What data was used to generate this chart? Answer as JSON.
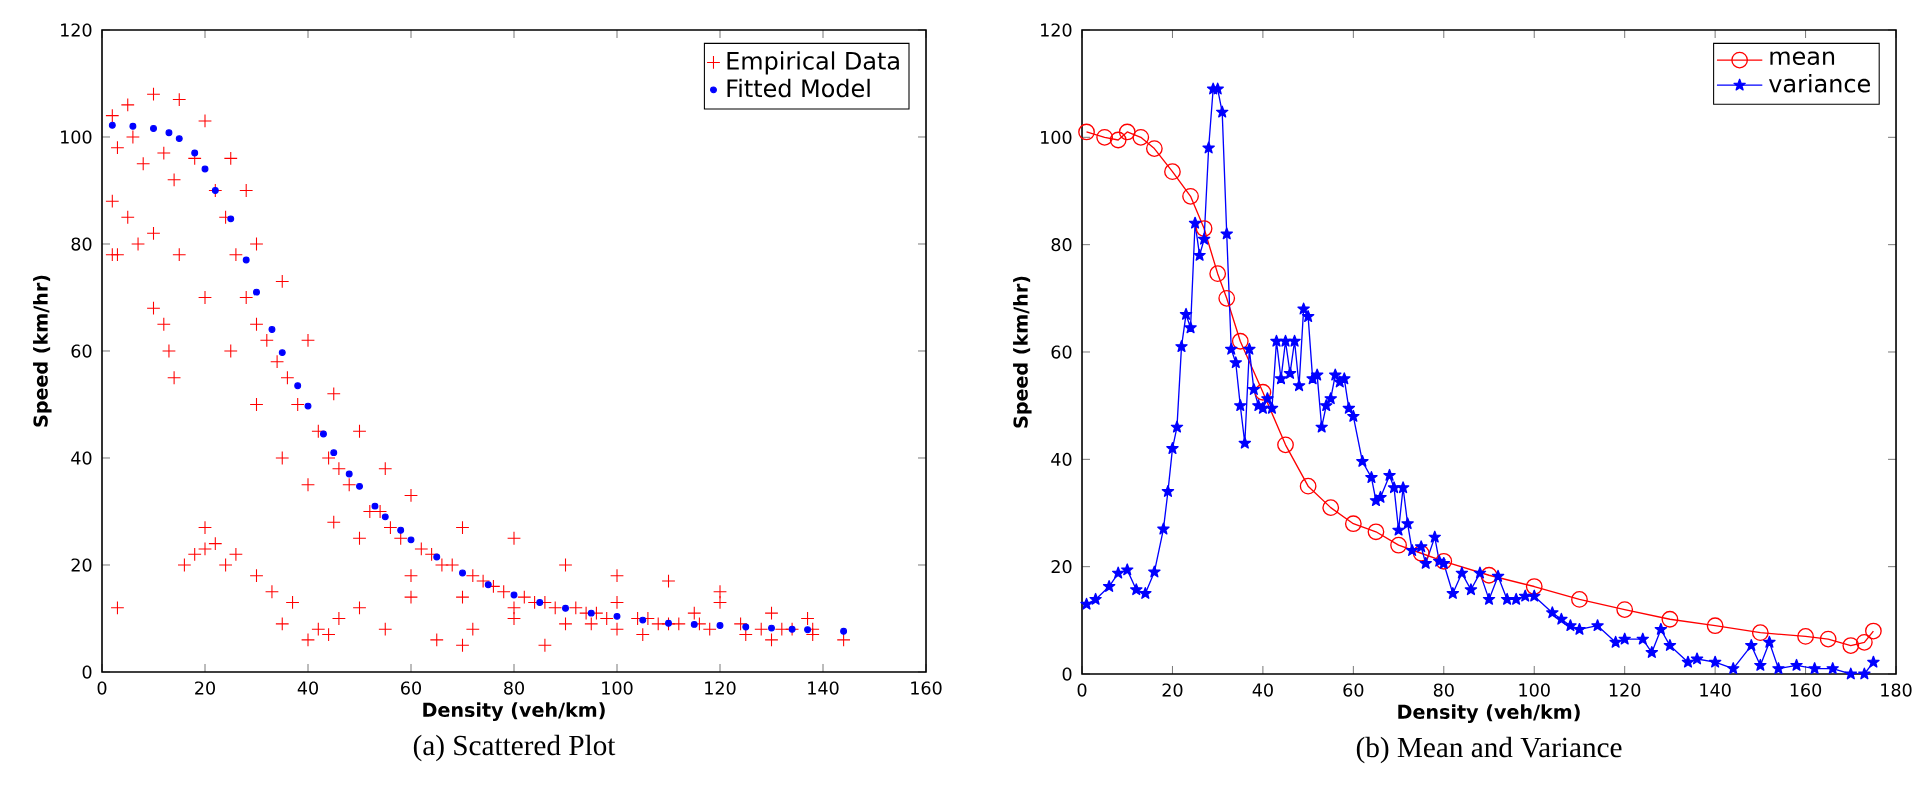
{
  "chart_data": [
    {
      "type": "scatter",
      "title": "(a)  Scattered Plot",
      "xlabel": "Density (veh/km)",
      "ylabel": "Speed (km/hr)",
      "xlim": [
        0,
        160
      ],
      "ylim": [
        0,
        120
      ],
      "xticks": [
        0,
        20,
        40,
        60,
        80,
        100,
        120,
        140,
        160
      ],
      "yticks": [
        0,
        20,
        40,
        60,
        80,
        100,
        120
      ],
      "legend": "top right",
      "series": [
        {
          "name": "Empirical Data",
          "color": "#ff0000",
          "marker": "cross",
          "x": [
            2,
            5,
            10,
            15,
            20,
            25,
            28,
            30,
            35,
            40,
            45,
            50,
            55,
            60,
            70,
            80,
            90,
            100,
            110,
            120,
            130,
            137,
            2,
            5,
            10,
            15,
            20,
            25,
            30,
            35,
            40,
            45,
            50,
            60,
            70,
            80,
            90,
            100,
            3,
            6,
            8,
            12,
            14,
            18,
            22,
            24,
            26,
            28,
            30,
            32,
            34,
            36,
            38,
            42,
            44,
            46,
            48,
            52,
            54,
            56,
            58,
            62,
            64,
            66,
            68,
            72,
            74,
            76,
            78,
            82,
            84,
            86,
            88,
            92,
            94,
            96,
            98,
            104,
            106,
            108,
            112,
            116,
            118,
            124,
            128,
            132,
            134,
            138,
            3,
            2,
            3,
            7,
            10,
            12,
            13,
            14,
            16,
            18,
            20,
            20,
            22,
            24,
            26,
            30,
            33,
            35,
            37,
            40,
            42,
            44,
            46,
            50,
            55,
            60,
            65,
            70,
            72,
            80,
            86,
            95,
            100,
            105,
            110,
            115,
            120,
            125,
            130,
            138,
            144
          ],
          "values": [
            104,
            106,
            108,
            107,
            103,
            96,
            90,
            80,
            73,
            62,
            52,
            45,
            38,
            33,
            27,
            25,
            20,
            18,
            17,
            13,
            11,
            10,
            88,
            85,
            82,
            78,
            70,
            60,
            50,
            40,
            35,
            28,
            25,
            18,
            14,
            10,
            9,
            8,
            98,
            100,
            95,
            97,
            92,
            96,
            90,
            85,
            78,
            70,
            65,
            62,
            58,
            55,
            50,
            45,
            40,
            38,
            35,
            30,
            30,
            27,
            25,
            23,
            22,
            20,
            20,
            18,
            17,
            16,
            15,
            14,
            13,
            13,
            12,
            12,
            11,
            11,
            10,
            10,
            10,
            9,
            9,
            9,
            8,
            9,
            8,
            8,
            8,
            8,
            12,
            78,
            78,
            80,
            68,
            65,
            60,
            55,
            20,
            22,
            27,
            23,
            24,
            20,
            22,
            18,
            15,
            9,
            13,
            6,
            8,
            7,
            10,
            12,
            8,
            14,
            6,
            5,
            8,
            12,
            5,
            9,
            13,
            7,
            9,
            11,
            15,
            7,
            6,
            7,
            6
          ]
        },
        {
          "name": "Fitted Model",
          "color": "#0000ff",
          "marker": "circle",
          "x": [
            2,
            6,
            10,
            13,
            15,
            18,
            20,
            22,
            25,
            28,
            30,
            33,
            35,
            38,
            40,
            43,
            45,
            48,
            50,
            53,
            55,
            58,
            60,
            65,
            70,
            75,
            80,
            85,
            90,
            95,
            100,
            105,
            110,
            115,
            120,
            125,
            130,
            134,
            137,
            144
          ],
          "values": [
            102.2,
            102,
            101.6,
            100.8,
            99.7,
            97,
            94,
            90,
            84.7,
            77,
            71,
            64,
            59.7,
            53.5,
            49.7,
            44.5,
            41,
            37,
            34.7,
            31,
            29,
            26.5,
            24.7,
            21.5,
            18.5,
            16.3,
            14.4,
            13,
            11.9,
            11,
            10.4,
            9.7,
            9.1,
            8.9,
            8.7,
            8.4,
            8.2,
            8,
            7.9,
            7.6
          ]
        }
      ]
    },
    {
      "type": "line",
      "title": "(b)  Mean and Variance",
      "xlabel": "Density (veh/km)",
      "ylabel": "Speed (km/hr)",
      "xlim": [
        0,
        180
      ],
      "ylim": [
        0,
        120
      ],
      "xticks": [
        0,
        20,
        40,
        60,
        80,
        100,
        120,
        140,
        160,
        180
      ],
      "yticks": [
        0,
        20,
        40,
        60,
        80,
        100,
        120
      ],
      "legend": "top right",
      "series": [
        {
          "name": "mean",
          "color": "#ff0000",
          "marker": "circle",
          "x": [
            1,
            5,
            8,
            10,
            13,
            16,
            20,
            24,
            27,
            30,
            32,
            35,
            40,
            45,
            50,
            55,
            60,
            65,
            70,
            75,
            80,
            90,
            100,
            110,
            120,
            130,
            140,
            150,
            160,
            165,
            170,
            173,
            175
          ],
          "values": [
            101,
            100,
            99.5,
            101,
            100,
            97.9,
            93.6,
            89,
            83,
            74.6,
            70,
            62,
            52.5,
            42.7,
            35,
            31,
            28,
            26.5,
            24,
            22.5,
            21,
            18.4,
            16.3,
            13.9,
            12,
            10.2,
            9,
            7.7,
            7,
            6.5,
            5.3,
            5.9,
            8
          ]
        },
        {
          "name": "variance",
          "color": "#0000ff",
          "marker": "star",
          "x": [
            1,
            3,
            6,
            8,
            10,
            12,
            14,
            16,
            18,
            19,
            20,
            21,
            22,
            23,
            24,
            25,
            26,
            27,
            28,
            29,
            30,
            31,
            32,
            33,
            34,
            35,
            36,
            37,
            38,
            39,
            40,
            41,
            42,
            43,
            44,
            45,
            46,
            47,
            48,
            49,
            50,
            51,
            52,
            53,
            54,
            55,
            56,
            57,
            58,
            59,
            60,
            62,
            64,
            65,
            66,
            68,
            69,
            70,
            71,
            72,
            73,
            75,
            76,
            78,
            79,
            80,
            82,
            84,
            86,
            88,
            90,
            92,
            94,
            96,
            98,
            100,
            104,
            106,
            108,
            110,
            114,
            118,
            120,
            124,
            126,
            128,
            130,
            134,
            136,
            140,
            144,
            148,
            150,
            152,
            154,
            158,
            162,
            166,
            170,
            173,
            175
          ],
          "values": [
            13,
            13.9,
            16.3,
            18.8,
            19.4,
            15.7,
            15,
            19,
            27,
            34,
            42,
            46,
            61,
            67,
            64.5,
            84,
            78,
            81,
            98,
            109,
            109,
            104.7,
            82,
            60.5,
            58,
            50,
            43,
            60.5,
            53,
            50,
            49.5,
            51.3,
            49.5,
            62,
            55,
            62,
            56,
            62,
            53.7,
            68,
            66.6,
            55,
            55.7,
            46,
            50,
            51.3,
            55.7,
            54.4,
            55,
            49.5,
            48,
            39.6,
            36.6,
            32.3,
            32.9,
            37,
            34.7,
            26.8,
            34.7,
            28,
            23,
            23.7,
            20.6,
            25.5,
            21,
            20.6,
            15,
            18.8,
            15.7,
            18.8,
            13.9,
            18.2,
            13.9,
            13.9,
            14.5,
            14.5,
            11.4,
            10.2,
            9,
            8.3,
            9,
            5.9,
            6.5,
            6.5,
            4,
            8.3,
            5.3,
            2.2,
            2.8,
            2.2,
            1,
            5.3,
            1.6,
            5.9,
            1,
            1.6,
            1,
            1,
            0,
            0,
            2.2
          ]
        }
      ]
    }
  ]
}
